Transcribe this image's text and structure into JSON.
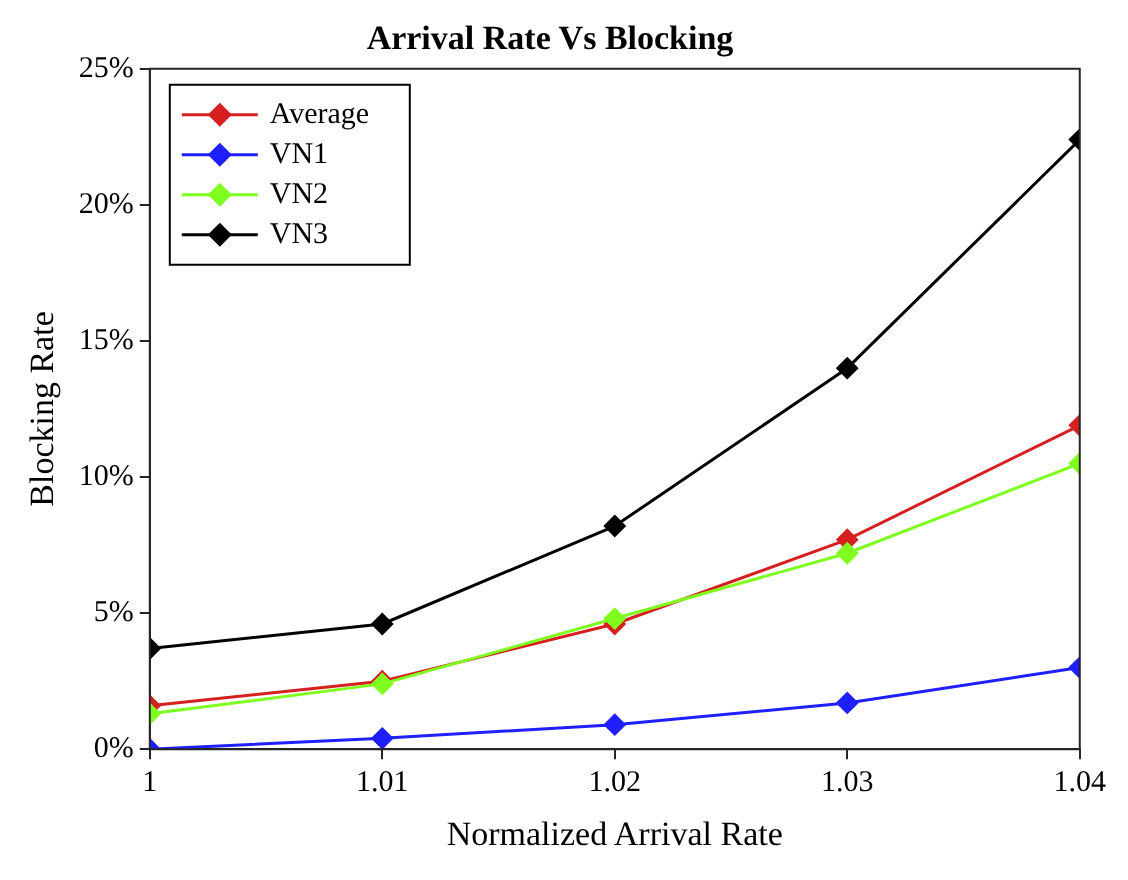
{
  "chart_data": {
    "type": "line",
    "title": "Arrival Rate Vs Blocking",
    "xlabel": "Normalized Arrival Rate",
    "ylabel": "Blocking Rate",
    "x": [
      1,
      1.01,
      1.02,
      1.03,
      1.04
    ],
    "series": [
      {
        "name": "Average",
        "color": "#d62020",
        "values": [
          1.6,
          2.5,
          4.6,
          7.7,
          11.9
        ]
      },
      {
        "name": "VN1",
        "color": "#1f1fff",
        "values": [
          0,
          0.4,
          0.9,
          1.7,
          3.0
        ]
      },
      {
        "name": "VN2",
        "color": "#7fff1f",
        "values": [
          1.3,
          2.4,
          4.8,
          7.2,
          10.5
        ]
      },
      {
        "name": "VN3",
        "color": "#000000",
        "values": [
          3.7,
          4.6,
          8.2,
          14.0,
          22.4
        ]
      }
    ],
    "xlim": [
      1,
      1.04
    ],
    "xticks": [
      1,
      1.01,
      1.02,
      1.03,
      1.04
    ],
    "ylim": [
      0,
      25
    ],
    "yticks": [
      {
        "value": 0,
        "label": "0%"
      },
      {
        "value": 5,
        "label": "5%"
      },
      {
        "value": 10,
        "label": "10%"
      },
      {
        "value": 15,
        "label": "15%"
      },
      {
        "value": 20,
        "label": "20%"
      },
      {
        "value": 25,
        "label": "25%"
      }
    ],
    "grid": false,
    "legend": "top left",
    "marker": "diamond",
    "line_style": "solid"
  }
}
